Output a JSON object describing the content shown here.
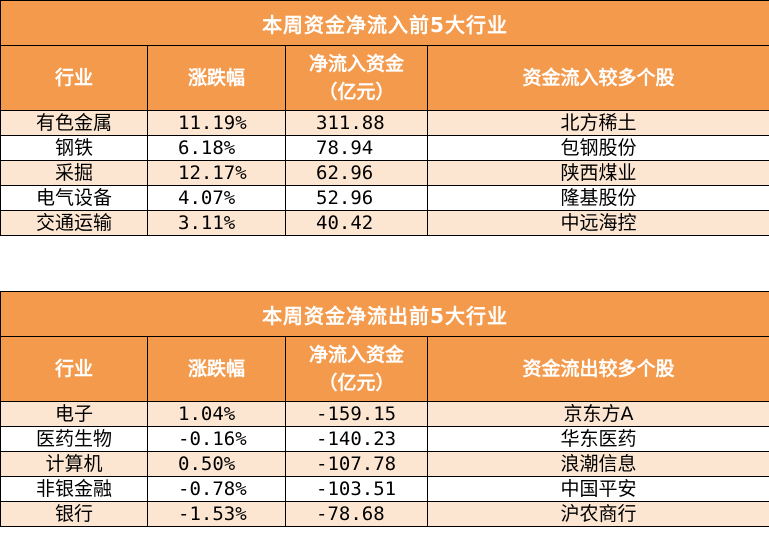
{
  "inflow": {
    "title": "本周资金净流入前5大行业",
    "headers": [
      "行业",
      "涨跌幅",
      "净流入资金\n（亿元）",
      "资金流入较多个股"
    ],
    "rows": [
      {
        "industry": "有色金属",
        "change": "11.19%",
        "net": "311.88",
        "stock": "北方稀土"
      },
      {
        "industry": "钢铁",
        "change": "6.18%",
        "net": "78.94",
        "stock": "包钢股份"
      },
      {
        "industry": "采掘",
        "change": "12.17%",
        "net": "62.96",
        "stock": "陕西煤业"
      },
      {
        "industry": "电气设备",
        "change": "4.07%",
        "net": "52.96",
        "stock": "隆基股份"
      },
      {
        "industry": "交通运输",
        "change": "3.11%",
        "net": "40.42",
        "stock": "中远海控"
      }
    ]
  },
  "outflow": {
    "title": "本周资金净流出前5大行业",
    "headers": [
      "行业",
      "涨跌幅",
      "净流入资金\n（亿元）",
      "资金流出较多个股"
    ],
    "rows": [
      {
        "industry": "电子",
        "change": "1.04%",
        "net": "-159.15",
        "stock": "京东方A"
      },
      {
        "industry": "医药生物",
        "change": "-0.16%",
        "net": "-140.23",
        "stock": "华东医药"
      },
      {
        "industry": "计算机",
        "change": "0.50%",
        "net": "-107.78",
        "stock": "浪潮信息"
      },
      {
        "industry": "非银金融",
        "change": "-0.78%",
        "net": "-103.51",
        "stock": "中国平安"
      },
      {
        "industry": "银行",
        "change": "-1.53%",
        "net": "-78.68",
        "stock": "沪农商行"
      }
    ]
  }
}
